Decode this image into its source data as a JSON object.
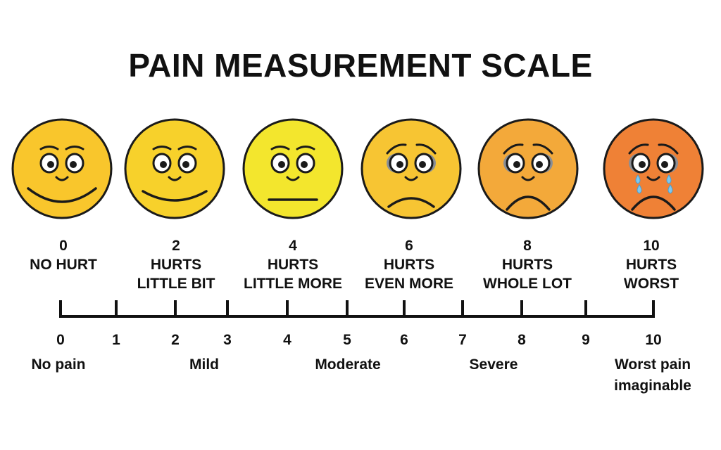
{
  "title": "PAIN MEASUREMENT SCALE",
  "faces": [
    {
      "rating": "0",
      "line1": "NO HURT",
      "line2": "",
      "expression": "happy-face-icon",
      "color": "#F9C62C"
    },
    {
      "rating": "2",
      "line1": "HURTS",
      "line2": "LITTLE BIT",
      "expression": "smiling-face-icon",
      "color": "#F7D12B"
    },
    {
      "rating": "4",
      "line1": "HURTS",
      "line2": "LITTLE MORE",
      "expression": "neutral-face-icon",
      "color": "#F3E62D"
    },
    {
      "rating": "6",
      "line1": "HURTS",
      "line2": "EVEN MORE",
      "expression": "sad-face-icon",
      "color": "#F7C533"
    },
    {
      "rating": "8",
      "line1": "HURTS",
      "line2": "WHOLE LOT",
      "expression": "very-sad-face-icon",
      "color": "#F3A93A"
    },
    {
      "rating": "10",
      "line1": "HURTS",
      "line2": "WORST",
      "expression": "crying-face-icon",
      "color": "#EF8136"
    }
  ],
  "scale": {
    "ticks": [
      "0",
      "1",
      "2",
      "3",
      "4",
      "5",
      "6",
      "7",
      "8",
      "9",
      "10"
    ],
    "categories": [
      {
        "line1": "No pain",
        "line2": ""
      },
      {
        "line1": "Mild",
        "line2": ""
      },
      {
        "line1": "Moderate",
        "line2": ""
      },
      {
        "line1": "Severe",
        "line2": ""
      },
      {
        "line1": "Worst pain",
        "line2": "imaginable"
      }
    ]
  },
  "colors": {
    "outline": "#1a1a1a",
    "tear": "#7EC8F0",
    "eye_shadow": "#8a8f96"
  }
}
